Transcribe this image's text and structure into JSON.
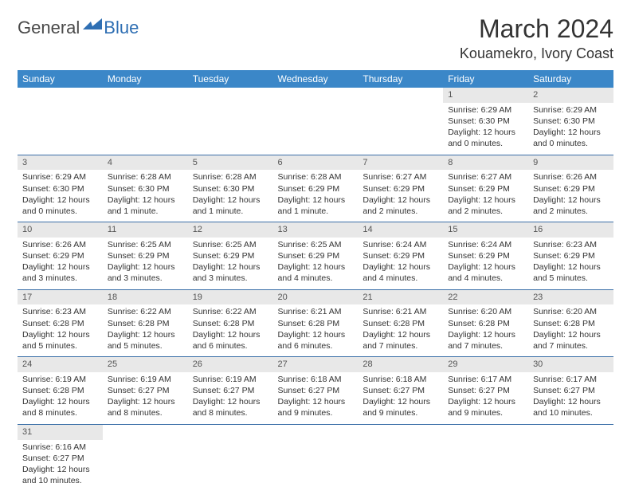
{
  "logo": {
    "text1": "General",
    "text2": "Blue"
  },
  "title": "March 2024",
  "location": "Kouamekro, Ivory Coast",
  "colors": {
    "header_bg": "#3b87c8",
    "header_text": "#ffffff",
    "daynum_bg": "#e8e8e8",
    "row_border": "#3b6fa8",
    "logo_blue": "#2f6fb3"
  },
  "daysOfWeek": [
    "Sunday",
    "Monday",
    "Tuesday",
    "Wednesday",
    "Thursday",
    "Friday",
    "Saturday"
  ],
  "weeks": [
    [
      null,
      null,
      null,
      null,
      null,
      {
        "n": "1",
        "sr": "Sunrise: 6:29 AM",
        "ss": "Sunset: 6:30 PM",
        "dl": "Daylight: 12 hours and 0 minutes."
      },
      {
        "n": "2",
        "sr": "Sunrise: 6:29 AM",
        "ss": "Sunset: 6:30 PM",
        "dl": "Daylight: 12 hours and 0 minutes."
      }
    ],
    [
      {
        "n": "3",
        "sr": "Sunrise: 6:29 AM",
        "ss": "Sunset: 6:30 PM",
        "dl": "Daylight: 12 hours and 0 minutes."
      },
      {
        "n": "4",
        "sr": "Sunrise: 6:28 AM",
        "ss": "Sunset: 6:30 PM",
        "dl": "Daylight: 12 hours and 1 minute."
      },
      {
        "n": "5",
        "sr": "Sunrise: 6:28 AM",
        "ss": "Sunset: 6:30 PM",
        "dl": "Daylight: 12 hours and 1 minute."
      },
      {
        "n": "6",
        "sr": "Sunrise: 6:28 AM",
        "ss": "Sunset: 6:29 PM",
        "dl": "Daylight: 12 hours and 1 minute."
      },
      {
        "n": "7",
        "sr": "Sunrise: 6:27 AM",
        "ss": "Sunset: 6:29 PM",
        "dl": "Daylight: 12 hours and 2 minutes."
      },
      {
        "n": "8",
        "sr": "Sunrise: 6:27 AM",
        "ss": "Sunset: 6:29 PM",
        "dl": "Daylight: 12 hours and 2 minutes."
      },
      {
        "n": "9",
        "sr": "Sunrise: 6:26 AM",
        "ss": "Sunset: 6:29 PM",
        "dl": "Daylight: 12 hours and 2 minutes."
      }
    ],
    [
      {
        "n": "10",
        "sr": "Sunrise: 6:26 AM",
        "ss": "Sunset: 6:29 PM",
        "dl": "Daylight: 12 hours and 3 minutes."
      },
      {
        "n": "11",
        "sr": "Sunrise: 6:25 AM",
        "ss": "Sunset: 6:29 PM",
        "dl": "Daylight: 12 hours and 3 minutes."
      },
      {
        "n": "12",
        "sr": "Sunrise: 6:25 AM",
        "ss": "Sunset: 6:29 PM",
        "dl": "Daylight: 12 hours and 3 minutes."
      },
      {
        "n": "13",
        "sr": "Sunrise: 6:25 AM",
        "ss": "Sunset: 6:29 PM",
        "dl": "Daylight: 12 hours and 4 minutes."
      },
      {
        "n": "14",
        "sr": "Sunrise: 6:24 AM",
        "ss": "Sunset: 6:29 PM",
        "dl": "Daylight: 12 hours and 4 minutes."
      },
      {
        "n": "15",
        "sr": "Sunrise: 6:24 AM",
        "ss": "Sunset: 6:29 PM",
        "dl": "Daylight: 12 hours and 4 minutes."
      },
      {
        "n": "16",
        "sr": "Sunrise: 6:23 AM",
        "ss": "Sunset: 6:29 PM",
        "dl": "Daylight: 12 hours and 5 minutes."
      }
    ],
    [
      {
        "n": "17",
        "sr": "Sunrise: 6:23 AM",
        "ss": "Sunset: 6:28 PM",
        "dl": "Daylight: 12 hours and 5 minutes."
      },
      {
        "n": "18",
        "sr": "Sunrise: 6:22 AM",
        "ss": "Sunset: 6:28 PM",
        "dl": "Daylight: 12 hours and 5 minutes."
      },
      {
        "n": "19",
        "sr": "Sunrise: 6:22 AM",
        "ss": "Sunset: 6:28 PM",
        "dl": "Daylight: 12 hours and 6 minutes."
      },
      {
        "n": "20",
        "sr": "Sunrise: 6:21 AM",
        "ss": "Sunset: 6:28 PM",
        "dl": "Daylight: 12 hours and 6 minutes."
      },
      {
        "n": "21",
        "sr": "Sunrise: 6:21 AM",
        "ss": "Sunset: 6:28 PM",
        "dl": "Daylight: 12 hours and 7 minutes."
      },
      {
        "n": "22",
        "sr": "Sunrise: 6:20 AM",
        "ss": "Sunset: 6:28 PM",
        "dl": "Daylight: 12 hours and 7 minutes."
      },
      {
        "n": "23",
        "sr": "Sunrise: 6:20 AM",
        "ss": "Sunset: 6:28 PM",
        "dl": "Daylight: 12 hours and 7 minutes."
      }
    ],
    [
      {
        "n": "24",
        "sr": "Sunrise: 6:19 AM",
        "ss": "Sunset: 6:28 PM",
        "dl": "Daylight: 12 hours and 8 minutes."
      },
      {
        "n": "25",
        "sr": "Sunrise: 6:19 AM",
        "ss": "Sunset: 6:27 PM",
        "dl": "Daylight: 12 hours and 8 minutes."
      },
      {
        "n": "26",
        "sr": "Sunrise: 6:19 AM",
        "ss": "Sunset: 6:27 PM",
        "dl": "Daylight: 12 hours and 8 minutes."
      },
      {
        "n": "27",
        "sr": "Sunrise: 6:18 AM",
        "ss": "Sunset: 6:27 PM",
        "dl": "Daylight: 12 hours and 9 minutes."
      },
      {
        "n": "28",
        "sr": "Sunrise: 6:18 AM",
        "ss": "Sunset: 6:27 PM",
        "dl": "Daylight: 12 hours and 9 minutes."
      },
      {
        "n": "29",
        "sr": "Sunrise: 6:17 AM",
        "ss": "Sunset: 6:27 PM",
        "dl": "Daylight: 12 hours and 9 minutes."
      },
      {
        "n": "30",
        "sr": "Sunrise: 6:17 AM",
        "ss": "Sunset: 6:27 PM",
        "dl": "Daylight: 12 hours and 10 minutes."
      }
    ],
    [
      {
        "n": "31",
        "sr": "Sunrise: 6:16 AM",
        "ss": "Sunset: 6:27 PM",
        "dl": "Daylight: 12 hours and 10 minutes."
      },
      null,
      null,
      null,
      null,
      null,
      null
    ]
  ]
}
